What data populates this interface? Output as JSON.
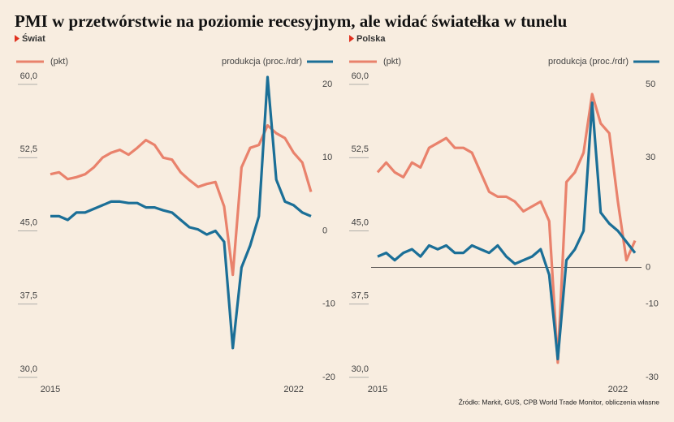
{
  "title": "PMI w przetwórstwie na poziomie recesyjnym, ale widać światełka w tunelu",
  "source": "Źródło: Markit, GUS, CPB World Trade Monitor, obliczenia własne",
  "chart_data": [
    {
      "type": "line",
      "subtitle": "Świat",
      "categories": [
        "2015",
        null,
        null,
        null,
        null,
        null,
        null,
        null,
        null,
        null,
        null,
        null,
        null,
        null,
        null,
        null,
        null,
        null,
        null,
        null,
        null,
        null,
        null,
        null,
        null,
        null,
        null,
        null,
        "2022",
        null,
        null
      ],
      "series": [
        {
          "name": "(pkt)",
          "color": "#e9826c",
          "values": [
            50.8,
            51,
            50.3,
            50.5,
            50.8,
            51.5,
            52.5,
            53,
            53.3,
            52.8,
            53.5,
            54.3,
            53.8,
            52.5,
            52.3,
            51,
            50.2,
            49.5,
            49.8,
            50,
            47.5,
            40.5,
            51.5,
            53.5,
            53.8,
            55.8,
            55,
            54.5,
            53,
            52,
            49
          ]
        },
        {
          "name": "produkcja (proc./rdr)",
          "color": "#1b6f97",
          "axis": "y2",
          "values": [
            2,
            2,
            1.5,
            2.5,
            2.5,
            3,
            3.5,
            4,
            4,
            3.8,
            3.8,
            3.2,
            3.2,
            2.8,
            2.5,
            1.5,
            0.5,
            0.2,
            -0.5,
            0,
            -1.5,
            -16,
            -5,
            -2,
            2,
            21,
            7,
            4,
            3.5,
            2.5,
            2
          ]
        }
      ],
      "ylim": [
        30,
        60
      ],
      "yticks": [
        {
          "value": 30,
          "label": "30,0"
        },
        {
          "value": 37.5,
          "label": "37,5"
        },
        {
          "value": 45,
          "label": "45,0"
        },
        {
          "value": 52.5,
          "label": "52,5"
        },
        {
          "value": 60,
          "label": "60,0"
        }
      ],
      "y2lim": [
        -20,
        20
      ],
      "y2ticks": [
        -20,
        -10,
        0,
        10,
        20
      ],
      "y2_zero_line": false
    },
    {
      "type": "line",
      "subtitle": "Polska",
      "categories": [
        "2015",
        null,
        null,
        null,
        null,
        null,
        null,
        null,
        null,
        null,
        null,
        null,
        null,
        null,
        null,
        null,
        null,
        null,
        null,
        null,
        null,
        null,
        null,
        null,
        null,
        null,
        null,
        null,
        "2022",
        null,
        null
      ],
      "series": [
        {
          "name": "(pkt)",
          "color": "#e9826c",
          "values": [
            51,
            52,
            51,
            50.5,
            52,
            51.5,
            53.5,
            54,
            54.5,
            53.5,
            53.5,
            53,
            51,
            49,
            48.5,
            48.5,
            48,
            47,
            47.5,
            48,
            46,
            31.5,
            50,
            51,
            53,
            59,
            56,
            55,
            48,
            42,
            44
          ]
        },
        {
          "name": "produkcja (proc./rdr)",
          "color": "#1b6f97",
          "axis": "y2",
          "values": [
            3,
            4,
            2,
            4,
            5,
            3,
            6,
            5,
            6,
            4,
            4,
            6,
            5,
            4,
            6,
            3,
            1,
            2,
            3,
            5,
            -2,
            -25,
            2,
            5,
            10,
            45,
            15,
            12,
            10,
            7,
            4
          ]
        }
      ],
      "ylim": [
        30,
        60
      ],
      "yticks": [
        {
          "value": 30,
          "label": "30,0"
        },
        {
          "value": 37.5,
          "label": "37,5"
        },
        {
          "value": 45,
          "label": "45,0"
        },
        {
          "value": 52.5,
          "label": "52,5"
        },
        {
          "value": 60,
          "label": "60,0"
        }
      ],
      "y2lim": [
        -30,
        50
      ],
      "y2ticks": [
        -30,
        -10,
        0,
        30,
        50
      ],
      "y2_zero_line": true
    }
  ]
}
